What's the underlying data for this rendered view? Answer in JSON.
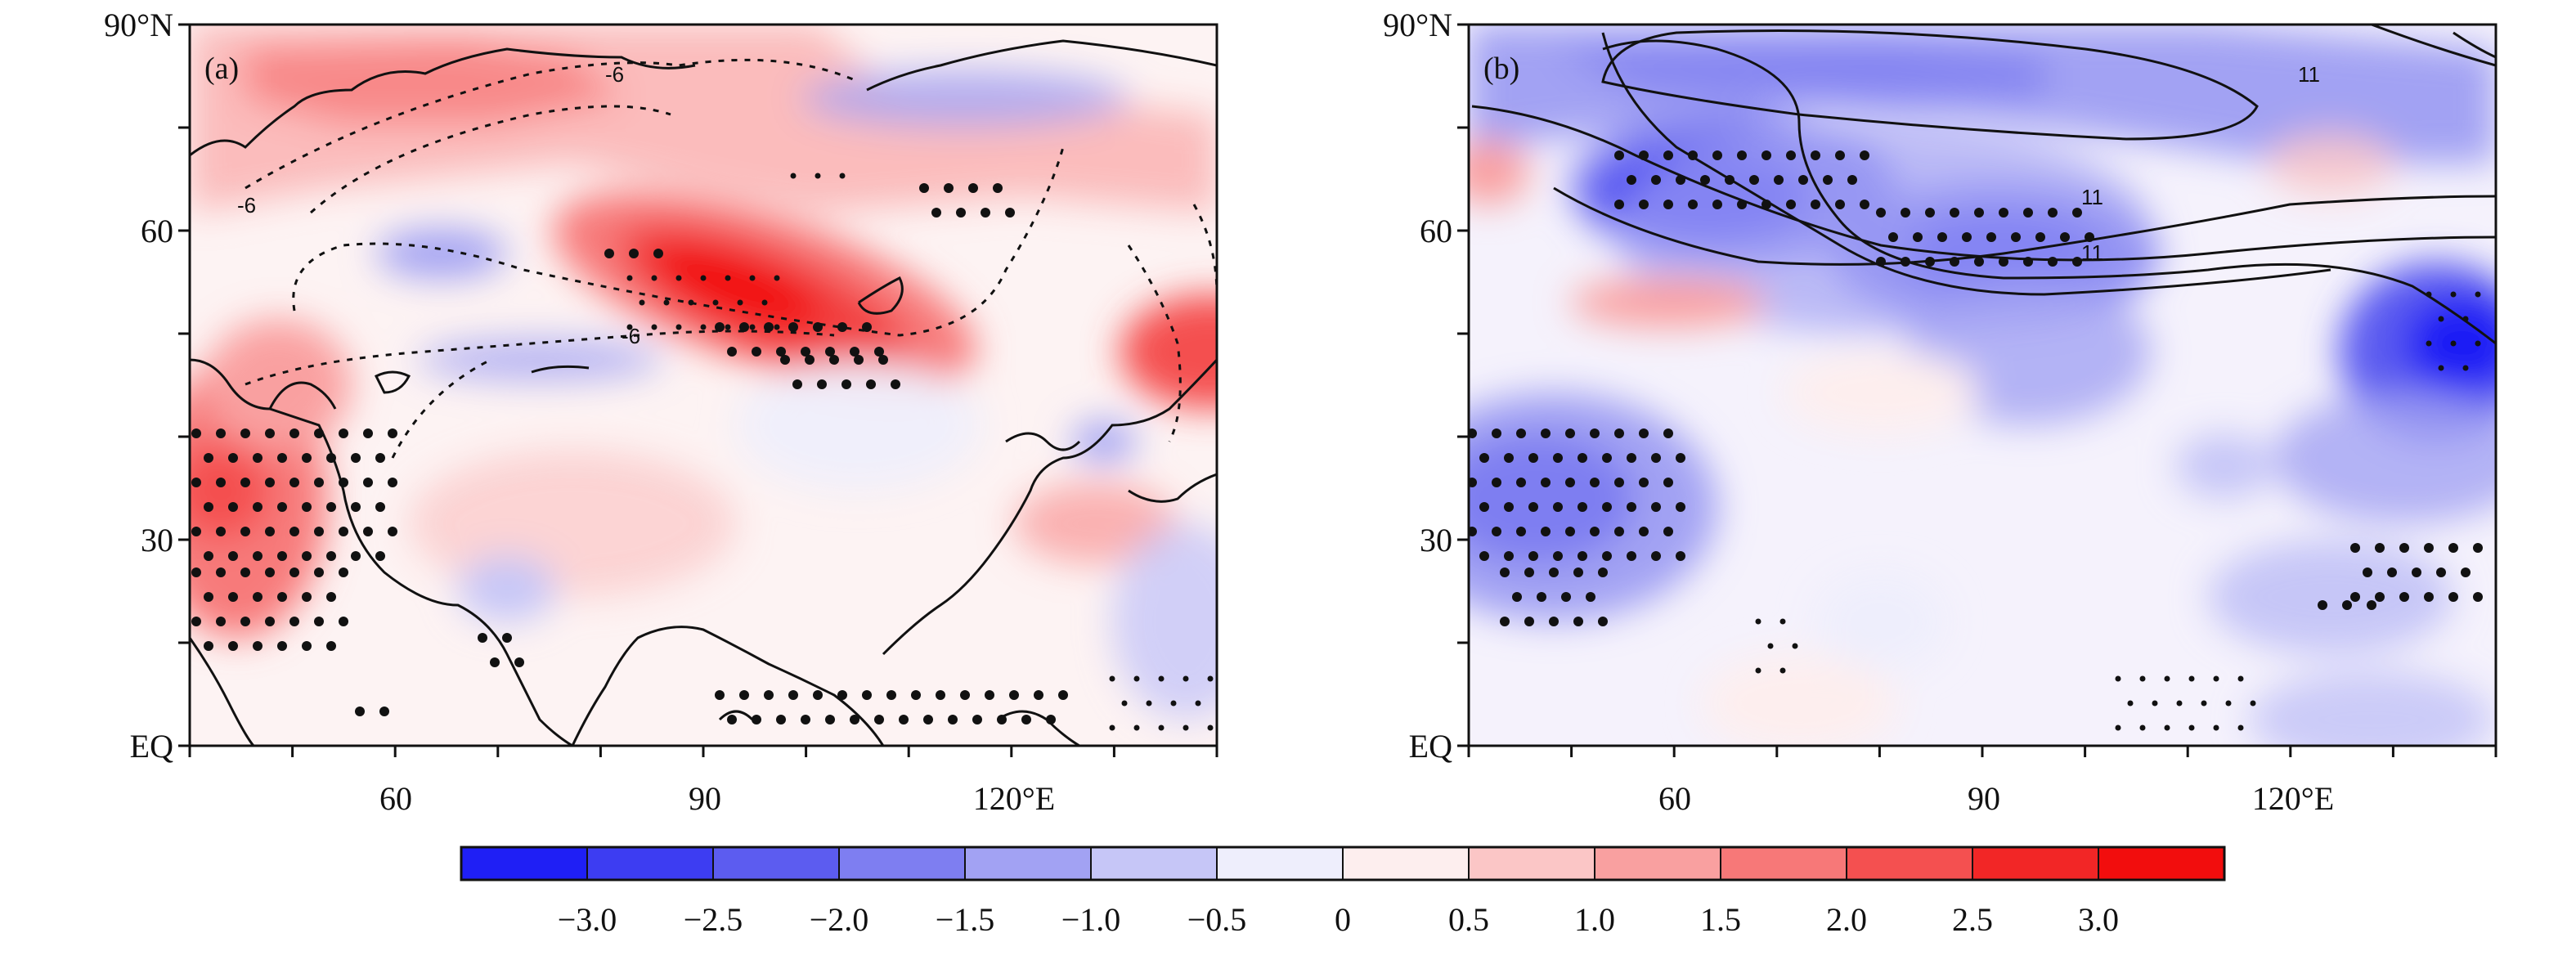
{
  "figure": {
    "type": "map",
    "panels": [
      {
        "id": "a",
        "tag": "(a)",
        "x_ticks": [
          "60",
          "90",
          "120°E"
        ],
        "y_ticks": [
          "90°N",
          "60",
          "30",
          "EQ"
        ],
        "contour_style": "dashed",
        "contour_labels": [
          "-6",
          "-6",
          "-6"
        ],
        "shading_summary": "positive anomaly maximum over central Siberia (~85–105°E, 50–58°N), weak negative bands near 60°N"
      },
      {
        "id": "b",
        "tag": "(b)",
        "x_ticks": [
          "60",
          "90",
          "120°E"
        ],
        "y_ticks": [
          "90°N",
          "60",
          "30",
          "EQ"
        ],
        "contour_style": "solid",
        "contour_labels": [
          "11",
          "11",
          "11"
        ],
        "shading_summary": "negative anomaly over northern Eurasia (55–100°E, 55–70°N) and far east (~130–140°E, 45–52°N)"
      }
    ],
    "colorbar": {
      "labels": [
        "−3.0",
        "−2.5",
        "−2.0",
        "−1.5",
        "−1.0",
        "−0.5",
        "0",
        "0.5",
        "1.0",
        "1.5",
        "2.0",
        "2.5",
        "3.0"
      ],
      "colors": [
        "#1f1ff5",
        "#3d3df2",
        "#5c5cf0",
        "#7e7ef1",
        "#a2a2f3",
        "#c6c6f7",
        "#eeeefc",
        "#fdeeee",
        "#fbc6c6",
        "#f9a0a0",
        "#f77878",
        "#f45050",
        "#f22626",
        "#f20d0d"
      ]
    }
  }
}
